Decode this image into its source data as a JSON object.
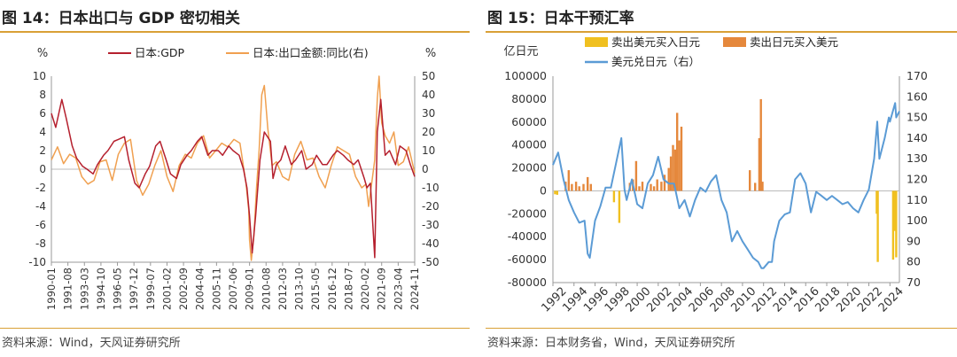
{
  "panel1": {
    "title": "图 14：日本出口与 GDP 密切相关",
    "source": "资料来源：Wind，天风证券研究所"
  },
  "panel2": {
    "title": "图 15：日本干预汇率",
    "source": "资料来源：日本财务省，Wind，天风证券研究所"
  },
  "colors": {
    "gdp": "#b5202e",
    "export": "#f0a050",
    "sell_usd": "#f0c020",
    "buy_usd": "#e5883c",
    "usdjpy": "#5b9bd5",
    "rule": "#d9a036"
  },
  "chart_data": [
    {
      "type": "line",
      "ylabel_left": "%",
      "ylabel_right": "%",
      "ylim_left": [
        -10,
        10
      ],
      "yticks_left": [
        -10,
        -8,
        -6,
        -4,
        -2,
        0,
        2,
        4,
        6,
        8,
        10
      ],
      "ylim_right": [
        -50,
        50
      ],
      "yticks_right": [
        -50,
        -40,
        -30,
        -20,
        -10,
        0,
        10,
        20,
        30,
        40,
        50
      ],
      "x_range": [
        "1990-01",
        "2024-11"
      ],
      "x_ticks": [
        "1990-01",
        "1991-08",
        "1993-03",
        "1994-10",
        "1996-05",
        "1997-12",
        "1999-07",
        "2001-02",
        "2002-09",
        "2004-04",
        "2005-11",
        "2007-06",
        "2009-01",
        "2010-08",
        "2012-03",
        "2013-10",
        "2015-05",
        "2016-12",
        "2018-07",
        "2020-02",
        "2021-09",
        "2023-04",
        "2024-11"
      ],
      "legend_position": "top",
      "series": [
        {
          "name": "日本:GDP",
          "axis": "left",
          "x": [
            "1990-01",
            "1990-06",
            "1991-01",
            "1991-06",
            "1992-01",
            "1992-06",
            "1993-01",
            "1993-06",
            "1994-01",
            "1994-06",
            "1995-01",
            "1995-06",
            "1996-01",
            "1996-06",
            "1997-01",
            "1997-06",
            "1998-01",
            "1998-06",
            "1999-01",
            "1999-06",
            "2000-01",
            "2000-06",
            "2001-01",
            "2001-06",
            "2002-01",
            "2002-06",
            "2003-01",
            "2003-06",
            "2004-01",
            "2004-06",
            "2005-01",
            "2005-06",
            "2006-01",
            "2006-06",
            "2007-01",
            "2007-06",
            "2008-01",
            "2008-06",
            "2008-10",
            "2009-01",
            "2009-04",
            "2009-08",
            "2010-01",
            "2010-06",
            "2011-01",
            "2011-04",
            "2011-08",
            "2012-01",
            "2012-06",
            "2013-01",
            "2013-06",
            "2014-01",
            "2014-06",
            "2015-01",
            "2015-06",
            "2016-01",
            "2016-06",
            "2017-01",
            "2017-06",
            "2018-01",
            "2018-06",
            "2019-01",
            "2019-06",
            "2020-01",
            "2020-04",
            "2020-08",
            "2021-01",
            "2021-04",
            "2021-08",
            "2022-01",
            "2022-06",
            "2023-01",
            "2023-06",
            "2024-01",
            "2024-06",
            "2024-11"
          ],
          "values": [
            6.0,
            4.5,
            7.5,
            5.5,
            2.5,
            1.2,
            0.3,
            0.0,
            -0.5,
            0.5,
            1.5,
            2.0,
            3.0,
            3.2,
            3.5,
            1.0,
            -1.5,
            -2.0,
            -0.5,
            0.3,
            2.5,
            3.0,
            1.0,
            -0.5,
            -1.0,
            0.5,
            1.5,
            2.0,
            3.0,
            3.5,
            1.5,
            2.0,
            2.0,
            1.5,
            2.5,
            2.0,
            1.5,
            0.0,
            -2.0,
            -5.0,
            -9.0,
            -5.0,
            1.0,
            4.0,
            3.0,
            -1.0,
            0.5,
            1.0,
            2.5,
            0.5,
            1.0,
            2.0,
            0.0,
            0.5,
            1.5,
            0.5,
            0.5,
            1.5,
            2.0,
            1.5,
            1.0,
            0.5,
            1.0,
            -1.0,
            -2.0,
            -1.5,
            -9.5,
            4.0,
            7.5,
            1.5,
            2.0,
            0.5,
            2.5,
            2.0,
            0.5,
            -0.8
          ]
        },
        {
          "name": "日本:出口金额:同比(右)",
          "axis": "right",
          "x": [
            "1990-01",
            "1990-08",
            "1991-03",
            "1991-10",
            "1992-05",
            "1992-12",
            "1993-07",
            "1994-02",
            "1994-09",
            "1995-04",
            "1995-11",
            "1996-06",
            "1997-01",
            "1997-08",
            "1998-03",
            "1998-10",
            "1999-05",
            "1999-12",
            "2000-07",
            "2001-02",
            "2001-09",
            "2002-04",
            "2002-11",
            "2003-06",
            "2004-01",
            "2004-08",
            "2005-03",
            "2005-10",
            "2006-05",
            "2006-12",
            "2007-07",
            "2008-02",
            "2008-09",
            "2008-12",
            "2009-01",
            "2009-03",
            "2009-06",
            "2009-09",
            "2009-12",
            "2010-03",
            "2010-06",
            "2010-10",
            "2011-03",
            "2011-08",
            "2012-03",
            "2012-10",
            "2013-05",
            "2013-12",
            "2014-07",
            "2015-02",
            "2015-09",
            "2016-04",
            "2016-11",
            "2017-06",
            "2018-01",
            "2018-08",
            "2019-03",
            "2019-10",
            "2020-03",
            "2020-06",
            "2020-10",
            "2021-01",
            "2021-04",
            "2021-06",
            "2021-09",
            "2022-01",
            "2022-06",
            "2022-11",
            "2023-04",
            "2023-10",
            "2024-04",
            "2024-11"
          ],
          "values": [
            5,
            12,
            3,
            8,
            6,
            -4,
            -8,
            -6,
            4,
            5,
            -6,
            8,
            14,
            16,
            -6,
            -14,
            -8,
            2,
            10,
            -4,
            -12,
            2,
            8,
            6,
            14,
            18,
            6,
            10,
            14,
            12,
            16,
            14,
            -8,
            -22,
            -38,
            -49,
            -36,
            -10,
            10,
            40,
            45,
            22,
            2,
            4,
            -4,
            -6,
            8,
            15,
            5,
            6,
            -4,
            -10,
            2,
            12,
            10,
            8,
            -4,
            -10,
            -8,
            -20,
            -6,
            5,
            38,
            50,
            25,
            18,
            14,
            20,
            2,
            4,
            12,
            -2
          ]
        }
      ]
    },
    {
      "type": "bar+line",
      "ylabel_left": "亿日元",
      "ylim_left": [
        -80000,
        100000
      ],
      "yticks_left": [
        -80000,
        -60000,
        -40000,
        -20000,
        0,
        20000,
        40000,
        60000,
        80000,
        100000
      ],
      "ylim_right": [
        70,
        170
      ],
      "yticks_right": [
        70,
        80,
        90,
        100,
        110,
        120,
        130,
        140,
        150,
        160,
        170
      ],
      "x_range": [
        1992,
        2024.9
      ],
      "x_ticks": [
        "1992",
        "1994",
        "1996",
        "1998",
        "2000",
        "2002",
        "2004",
        "2006",
        "2008",
        "2010",
        "2012",
        "2014",
        "2016",
        "2018",
        "2020",
        "2022",
        "2024"
      ],
      "legend_position": "top",
      "series": [
        {
          "name": "卖出美元买入日元",
          "type": "bar",
          "axis": "left",
          "x": [
            1992.2,
            1992.4,
            1997.8,
            1998.3,
            2022.75,
            2022.85,
            2024.3,
            2024.45,
            2024.6
          ],
          "values": [
            -3000,
            -3500,
            -10000,
            -28000,
            -20000,
            -62000,
            -60000,
            -35000,
            -58000
          ]
        },
        {
          "name": "卖出日元买入美元",
          "type": "bar",
          "axis": "left",
          "x": [
            1993.2,
            1993.5,
            1993.8,
            1994.2,
            1994.5,
            1994.9,
            1995.3,
            1995.6,
            1999.3,
            1999.6,
            1999.9,
            2000.2,
            2000.5,
            2001.3,
            2001.6,
            2001.9,
            2002.3,
            2002.6,
            2003.0,
            2003.2,
            2003.4,
            2003.6,
            2003.8,
            2004.0,
            2004.2,
            2010.7,
            2011.2,
            2011.6,
            2011.75,
            2011.9
          ],
          "values": [
            8000,
            18000,
            6000,
            8000,
            4000,
            6000,
            12000,
            6000,
            7000,
            10000,
            26000,
            4000,
            8000,
            6000,
            4000,
            10000,
            8000,
            14000,
            20000,
            30000,
            40000,
            36000,
            68000,
            44000,
            56000,
            18000,
            7000,
            46000,
            80000,
            8000
          ]
        },
        {
          "name": "美元兑日元（右）",
          "type": "line",
          "axis": "right",
          "x": [
            1992.0,
            1992.5,
            1993.0,
            1993.5,
            1994.0,
            1994.5,
            1995.0,
            1995.3,
            1995.5,
            1996.0,
            1996.5,
            1997.0,
            1997.5,
            1998.0,
            1998.5,
            1998.8,
            1999.0,
            1999.5,
            2000.0,
            2000.5,
            2001.0,
            2001.5,
            2002.0,
            2002.5,
            2003.0,
            2003.5,
            2004.0,
            2004.5,
            2005.0,
            2005.5,
            2006.0,
            2006.5,
            2007.0,
            2007.5,
            2008.0,
            2008.5,
            2009.0,
            2009.5,
            2010.0,
            2010.5,
            2011.0,
            2011.5,
            2011.8,
            2012.0,
            2012.5,
            2012.8,
            2013.0,
            2013.5,
            2014.0,
            2014.5,
            2015.0,
            2015.5,
            2016.0,
            2016.5,
            2017.0,
            2017.5,
            2018.0,
            2018.5,
            2019.0,
            2019.5,
            2020.0,
            2020.5,
            2021.0,
            2021.5,
            2022.0,
            2022.5,
            2022.8,
            2023.0,
            2023.5,
            2023.9,
            2024.0,
            2024.5,
            2024.6,
            2024.9
          ],
          "values": [
            127,
            133,
            120,
            110,
            104,
            99,
            100,
            84,
            82,
            100,
            107,
            116,
            116,
            128,
            140,
            115,
            110,
            120,
            108,
            106,
            118,
            122,
            131,
            120,
            118,
            118,
            106,
            110,
            102,
            110,
            116,
            114,
            119,
            122,
            110,
            104,
            90,
            95,
            90,
            86,
            82,
            80,
            77,
            77,
            80,
            80,
            90,
            100,
            103,
            104,
            120,
            123,
            118,
            104,
            114,
            112,
            110,
            112,
            110,
            108,
            109,
            106,
            104,
            110,
            115,
            130,
            148,
            130,
            140,
            150,
            148,
            157,
            150,
            153
          ]
        }
      ]
    }
  ]
}
